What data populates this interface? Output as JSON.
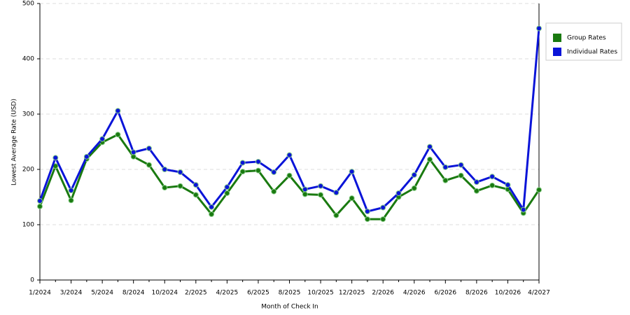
{
  "chart_data": {
    "type": "line",
    "x_label": "Month of Check In",
    "y_label": "Lowest Average Rate (USD)",
    "categories": [
      "1/2024",
      null,
      "3/2024",
      null,
      "5/2024",
      null,
      "8/2024",
      null,
      "10/2024",
      null,
      "2/2025",
      null,
      "4/2025",
      null,
      "6/2025",
      null,
      "8/2025",
      null,
      "10/2025",
      null,
      "12/2025",
      null,
      "2/2026",
      null,
      "4/2026",
      null,
      "6/2026",
      null,
      "8/2026",
      null,
      "10/2026",
      null,
      "4/2027"
    ],
    "series": [
      {
        "name": "Group Rates",
        "color": "#1a7a10",
        "values": [
          133,
          206,
          144,
          219,
          249,
          263,
          223,
          208,
          167,
          170,
          154,
          119,
          157,
          196,
          198,
          160,
          189,
          155,
          154,
          117,
          148,
          110,
          110,
          150,
          166,
          218,
          180,
          189,
          161,
          171,
          164,
          121,
          163
        ]
      },
      {
        "name": "Individual Rates",
        "color": "#0a14d8",
        "values": [
          143,
          221,
          162,
          223,
          255,
          306,
          231,
          238,
          200,
          195,
          172,
          132,
          168,
          212,
          214,
          195,
          226,
          164,
          170,
          158,
          196,
          124,
          131,
          157,
          190,
          241,
          204,
          208,
          177,
          187,
          172,
          127,
          455
        ]
      }
    ],
    "ylim": [
      0,
      500
    ],
    "yticks": [
      0,
      100,
      200,
      300,
      400,
      500
    ],
    "grid": true,
    "legend": "right"
  }
}
